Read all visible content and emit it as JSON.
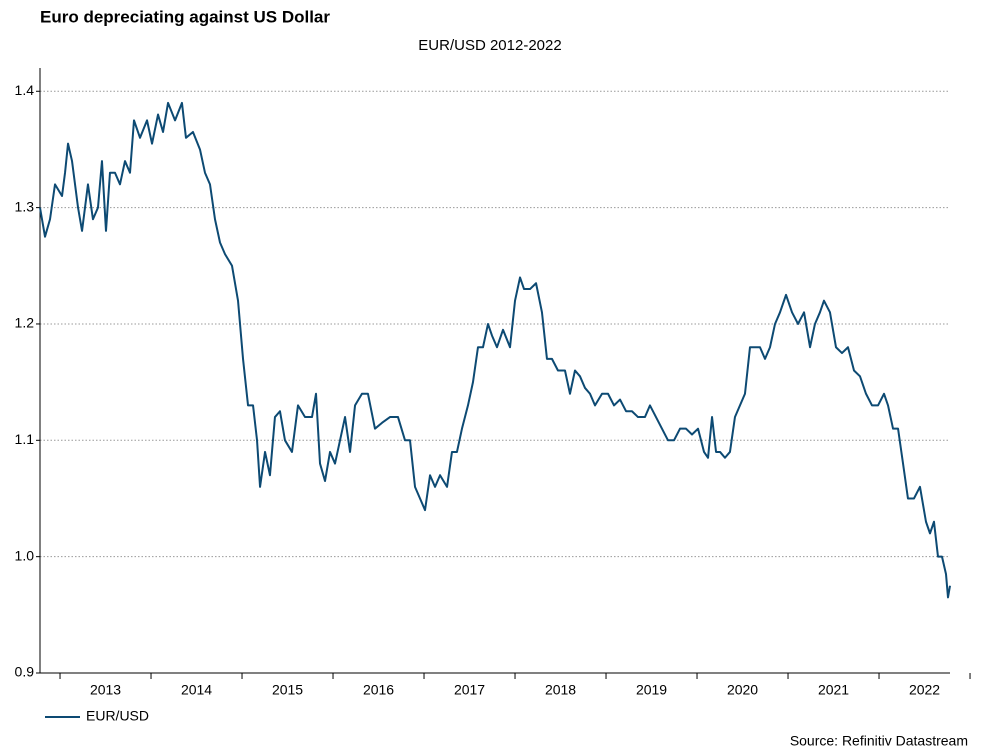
{
  "chart_data": {
    "type": "line",
    "title": "Euro depreciating against US Dollar",
    "subtitle": "EUR/USD 2012-2022",
    "source": "Source: Refinitiv Datastream",
    "xlim": [
      2012.78,
      2022.78
    ],
    "xticks": [
      {
        "value": 2013.5,
        "label": "2013"
      },
      {
        "value": 2014.5,
        "label": "2014"
      },
      {
        "value": 2015.5,
        "label": "2015"
      },
      {
        "value": 2016.5,
        "label": "2016"
      },
      {
        "value": 2017.5,
        "label": "2017"
      },
      {
        "value": 2018.5,
        "label": "2018"
      },
      {
        "value": 2019.5,
        "label": "2019"
      },
      {
        "value": 2020.5,
        "label": "2020"
      },
      {
        "value": 2021.5,
        "label": "2021"
      },
      {
        "value": 2022.5,
        "label": "2022"
      }
    ],
    "ylim": [
      0.9,
      1.42
    ],
    "yticks": [
      0.9,
      {
        "value": 1,
        "label": "1.0"
      },
      1.1,
      1.2,
      1.3,
      1.4
    ],
    "grid": true,
    "legend": "bottom-left",
    "series": [
      {
        "name": "EUR/USD",
        "color": "#0d4a73",
        "x": [
          2012.78,
          2012.835,
          2012.89,
          2012.945,
          2013.022,
          2013.055,
          2013.088,
          2013.132,
          2013.198,
          2013.242,
          2013.307,
          2013.362,
          2013.417,
          2013.461,
          2013.505,
          2013.549,
          2013.604,
          2013.659,
          2013.714,
          2013.769,
          2013.813,
          2013.879,
          2013.956,
          2014.011,
          2014.077,
          2014.132,
          2014.187,
          2014.264,
          2014.34,
          2014.384,
          2014.461,
          2014.538,
          2014.593,
          2014.648,
          2014.703,
          2014.758,
          2014.813,
          2014.89,
          2014.956,
          2015.011,
          2015.066,
          2015.121,
          2015.165,
          2015.198,
          2015.253,
          2015.307,
          2015.362,
          2015.417,
          2015.472,
          2015.549,
          2015.615,
          2015.692,
          2015.769,
          2015.813,
          2015.857,
          2015.912,
          2015.967,
          2016.022,
          2016.077,
          2016.132,
          2016.187,
          2016.242,
          2016.318,
          2016.384,
          2016.461,
          2016.538,
          2016.626,
          2016.714,
          2016.791,
          2016.846,
          2016.901,
          2016.956,
          2017.011,
          2017.066,
          2017.121,
          2017.176,
          2017.253,
          2017.307,
          2017.362,
          2017.417,
          2017.483,
          2017.538,
          2017.593,
          2017.648,
          2017.703,
          2017.747,
          2017.802,
          2017.868,
          2017.945,
          2018.0,
          2018.055,
          2018.099,
          2018.165,
          2018.231,
          2018.296,
          2018.351,
          2018.406,
          2018.472,
          2018.549,
          2018.604,
          2018.659,
          2018.714,
          2018.769,
          2018.824,
          2018.879,
          2018.956,
          2019.022,
          2019.088,
          2019.154,
          2019.22,
          2019.285,
          2019.351,
          2019.428,
          2019.483,
          2019.549,
          2019.615,
          2019.681,
          2019.747,
          2019.813,
          2019.879,
          2019.945,
          2020.011,
          2020.077,
          2020.121,
          2020.165,
          2020.209,
          2020.253,
          2020.307,
          2020.362,
          2020.417,
          2020.472,
          2020.527,
          2020.582,
          2020.637,
          2020.692,
          2020.747,
          2020.802,
          2020.857,
          2020.912,
          2020.978,
          2021.044,
          2021.11,
          2021.176,
          2021.242,
          2021.296,
          2021.351,
          2021.395,
          2021.461,
          2021.527,
          2021.593,
          2021.659,
          2021.725,
          2021.791,
          2021.857,
          2021.923,
          2021.989,
          2022.055,
          2022.099,
          2022.154,
          2022.209,
          2022.264,
          2022.318,
          2022.384,
          2022.45,
          2022.516,
          2022.56,
          2022.604,
          2022.648,
          2022.692,
          2022.736,
          2022.758,
          2022.78
        ],
        "values": [
          1.3,
          1.275,
          1.29,
          1.32,
          1.31,
          1.33,
          1.355,
          1.34,
          1.3,
          1.28,
          1.32,
          1.29,
          1.3,
          1.34,
          1.28,
          1.33,
          1.33,
          1.32,
          1.34,
          1.33,
          1.375,
          1.36,
          1.375,
          1.355,
          1.38,
          1.365,
          1.39,
          1.375,
          1.39,
          1.36,
          1.365,
          1.35,
          1.33,
          1.32,
          1.29,
          1.27,
          1.26,
          1.25,
          1.22,
          1.17,
          1.13,
          1.13,
          1.1,
          1.06,
          1.09,
          1.07,
          1.12,
          1.125,
          1.1,
          1.09,
          1.13,
          1.12,
          1.12,
          1.14,
          1.08,
          1.065,
          1.09,
          1.08,
          1.1,
          1.12,
          1.09,
          1.13,
          1.14,
          1.14,
          1.11,
          1.115,
          1.12,
          1.12,
          1.1,
          1.1,
          1.06,
          1.05,
          1.04,
          1.07,
          1.06,
          1.07,
          1.06,
          1.09,
          1.09,
          1.11,
          1.13,
          1.15,
          1.18,
          1.18,
          1.2,
          1.19,
          1.18,
          1.195,
          1.18,
          1.22,
          1.24,
          1.23,
          1.23,
          1.235,
          1.21,
          1.17,
          1.17,
          1.16,
          1.16,
          1.14,
          1.16,
          1.155,
          1.145,
          1.14,
          1.13,
          1.14,
          1.14,
          1.13,
          1.135,
          1.125,
          1.125,
          1.12,
          1.12,
          1.13,
          1.12,
          1.11,
          1.1,
          1.1,
          1.11,
          1.11,
          1.105,
          1.11,
          1.09,
          1.085,
          1.12,
          1.09,
          1.09,
          1.085,
          1.09,
          1.12,
          1.13,
          1.14,
          1.18,
          1.18,
          1.18,
          1.17,
          1.18,
          1.2,
          1.21,
          1.225,
          1.21,
          1.2,
          1.21,
          1.18,
          1.2,
          1.21,
          1.22,
          1.21,
          1.18,
          1.175,
          1.18,
          1.16,
          1.155,
          1.14,
          1.13,
          1.13,
          1.14,
          1.13,
          1.11,
          1.11,
          1.08,
          1.05,
          1.05,
          1.06,
          1.03,
          1.02,
          1.03,
          1.0,
          1.0,
          0.985,
          0.965,
          0.975
        ]
      }
    ]
  }
}
